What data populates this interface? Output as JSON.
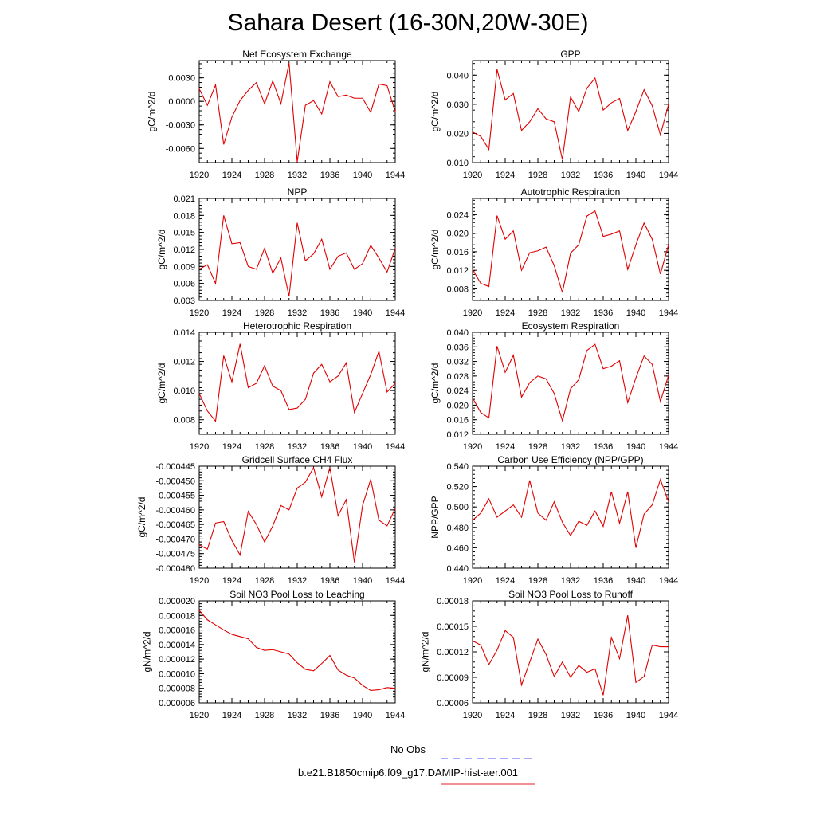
{
  "page": {
    "title": "Sahara Desert (16-30N,20W-30E)"
  },
  "legend": {
    "entries": [
      {
        "label": "No Obs",
        "color": "#5555ff",
        "style": "dashed"
      },
      {
        "label": "b.e21.B1850cmip6.f09_g17.DAMIP-hist-aer.001",
        "color": "#e02020",
        "style": "solid"
      }
    ]
  },
  "line_color": "#e00000",
  "chart_data": [
    {
      "type": "line",
      "title": "Net Ecosystem Exchange",
      "ylabel": "gC/m^2/d",
      "ylim": [
        -0.0078,
        0.0052
      ],
      "yticks": [
        "0.0030",
        "0.0000",
        "-0.0030",
        "-0.0060"
      ],
      "ytick_values": [
        0.003,
        0.0,
        -0.003,
        -0.006
      ],
      "xlim": [
        1920,
        1944
      ],
      "xticks": [
        "1920",
        "1924",
        "1928",
        "1932",
        "1936",
        "1940",
        "1944"
      ],
      "x": [
        1920,
        1921,
        1922,
        1923,
        1924,
        1925,
        1926,
        1927,
        1928,
        1929,
        1930,
        1931,
        1932,
        1933,
        1934,
        1935,
        1936,
        1937,
        1938,
        1939,
        1940,
        1941,
        1942,
        1943,
        1944
      ],
      "series": [
        {
          "values": [
            0.0016,
            -0.0005,
            0.0021,
            -0.0055,
            -0.002,
            0.0001,
            0.0014,
            0.0024,
            -0.0003,
            0.0026,
            -0.0003,
            0.0049,
            -0.0077,
            -0.0005,
            0.0001,
            -0.0016,
            0.0025,
            0.0006,
            0.0008,
            0.0004,
            0.0004,
            -0.0014,
            0.0022,
            0.002,
            -0.0013
          ]
        }
      ]
    },
    {
      "type": "line",
      "title": "GPP",
      "ylabel": "gC/m^2/d",
      "ylim": [
        0.01,
        0.045
      ],
      "yticks": [
        "0.040",
        "0.030",
        "0.020",
        "0.010"
      ],
      "ytick_values": [
        0.04,
        0.03,
        0.02,
        0.01
      ],
      "xlim": [
        1920,
        1944
      ],
      "xticks": [
        "1920",
        "1924",
        "1928",
        "1932",
        "1936",
        "1940",
        "1944"
      ],
      "x": [
        1920,
        1921,
        1922,
        1923,
        1924,
        1925,
        1926,
        1927,
        1928,
        1929,
        1930,
        1931,
        1932,
        1933,
        1934,
        1935,
        1936,
        1937,
        1938,
        1939,
        1940,
        1941,
        1942,
        1943,
        1944
      ],
      "series": [
        {
          "values": [
            0.0205,
            0.019,
            0.0145,
            0.042,
            0.0315,
            0.0337,
            0.021,
            0.024,
            0.0285,
            0.025,
            0.024,
            0.011,
            0.0325,
            0.0275,
            0.0355,
            0.039,
            0.028,
            0.0305,
            0.032,
            0.021,
            0.0275,
            0.035,
            0.0295,
            0.0195,
            0.03
          ]
        }
      ]
    },
    {
      "type": "line",
      "title": "NPP",
      "ylabel": "gC/m^2/d",
      "ylim": [
        0.003,
        0.021
      ],
      "yticks": [
        "0.021",
        "0.018",
        "0.015",
        "0.012",
        "0.009",
        "0.006",
        "0.003"
      ],
      "ytick_values": [
        0.021,
        0.018,
        0.015,
        0.012,
        0.009,
        0.006,
        0.003
      ],
      "xlim": [
        1920,
        1944
      ],
      "xticks": [
        "1920",
        "1924",
        "1928",
        "1932",
        "1936",
        "1940",
        "1944"
      ],
      "x": [
        1920,
        1921,
        1922,
        1923,
        1924,
        1925,
        1926,
        1927,
        1928,
        1929,
        1930,
        1931,
        1932,
        1933,
        1934,
        1935,
        1936,
        1937,
        1938,
        1939,
        1940,
        1941,
        1942,
        1943,
        1944
      ],
      "series": [
        {
          "values": [
            0.0085,
            0.0093,
            0.006,
            0.018,
            0.013,
            0.0132,
            0.009,
            0.0085,
            0.0122,
            0.0078,
            0.0105,
            0.0037,
            0.0167,
            0.01,
            0.0112,
            0.0138,
            0.0085,
            0.0108,
            0.0114,
            0.0085,
            0.0095,
            0.0127,
            0.0105,
            0.008,
            0.0122
          ]
        }
      ]
    },
    {
      "type": "line",
      "title": "Autotrophic Respiration",
      "ylabel": "gC/m^2/d",
      "ylim": [
        0.0055,
        0.0275
      ],
      "yticks": [
        "0.024",
        "0.020",
        "0.016",
        "0.012",
        "0.008"
      ],
      "ytick_values": [
        0.024,
        0.02,
        0.016,
        0.012,
        0.008
      ],
      "xlim": [
        1920,
        1944
      ],
      "xticks": [
        "1920",
        "1924",
        "1928",
        "1932",
        "1936",
        "1940",
        "1944"
      ],
      "x": [
        1920,
        1921,
        1922,
        1923,
        1924,
        1925,
        1926,
        1927,
        1928,
        1929,
        1930,
        1931,
        1932,
        1933,
        1934,
        1935,
        1936,
        1937,
        1938,
        1939,
        1940,
        1941,
        1942,
        1943,
        1944
      ],
      "series": [
        {
          "values": [
            0.0122,
            0.0092,
            0.0085,
            0.0238,
            0.0187,
            0.0205,
            0.012,
            0.0158,
            0.0162,
            0.017,
            0.013,
            0.0072,
            0.0157,
            0.0175,
            0.0237,
            0.0248,
            0.0193,
            0.0198,
            0.0205,
            0.0122,
            0.0175,
            0.0222,
            0.0187,
            0.0112,
            0.0175
          ]
        }
      ]
    },
    {
      "type": "line",
      "title": "Heterotrophic Respiration",
      "ylabel": "gC/m^2/d",
      "ylim": [
        0.007,
        0.014
      ],
      "yticks": [
        "0.014",
        "0.012",
        "0.010",
        "0.008"
      ],
      "ytick_values": [
        0.014,
        0.012,
        0.01,
        0.008
      ],
      "xlim": [
        1920,
        1944
      ],
      "xticks": [
        "1920",
        "1924",
        "1928",
        "1932",
        "1936",
        "1940",
        "1944"
      ],
      "x": [
        1920,
        1921,
        1922,
        1923,
        1924,
        1925,
        1926,
        1927,
        1928,
        1929,
        1930,
        1931,
        1932,
        1933,
        1934,
        1935,
        1936,
        1937,
        1938,
        1939,
        1940,
        1941,
        1942,
        1943,
        1944
      ],
      "series": [
        {
          "values": [
            0.0098,
            0.0086,
            0.0079,
            0.0124,
            0.0106,
            0.0132,
            0.0102,
            0.0105,
            0.0117,
            0.0103,
            0.01,
            0.0087,
            0.0088,
            0.0094,
            0.0112,
            0.0118,
            0.0106,
            0.011,
            0.0119,
            0.0085,
            0.0098,
            0.0111,
            0.0127,
            0.0099,
            0.0105
          ]
        }
      ]
    },
    {
      "type": "line",
      "title": "Ecosystem Respiration",
      "ylabel": "gC/m^2/d",
      "ylim": [
        0.012,
        0.04
      ],
      "yticks": [
        "0.040",
        "0.036",
        "0.032",
        "0.028",
        "0.024",
        "0.020",
        "0.016",
        "0.012"
      ],
      "ytick_values": [
        0.04,
        0.036,
        0.032,
        0.028,
        0.024,
        0.02,
        0.016,
        0.012
      ],
      "xlim": [
        1920,
        1944
      ],
      "xticks": [
        "1920",
        "1924",
        "1928",
        "1932",
        "1936",
        "1940",
        "1944"
      ],
      "x": [
        1920,
        1921,
        1922,
        1923,
        1924,
        1925,
        1926,
        1927,
        1928,
        1929,
        1930,
        1931,
        1932,
        1933,
        1934,
        1935,
        1936,
        1937,
        1938,
        1939,
        1940,
        1941,
        1942,
        1943,
        1944
      ],
      "series": [
        {
          "values": [
            0.022,
            0.018,
            0.0165,
            0.0362,
            0.029,
            0.0337,
            0.0222,
            0.0262,
            0.028,
            0.0272,
            0.0232,
            0.0157,
            0.0245,
            0.027,
            0.035,
            0.0367,
            0.03,
            0.0307,
            0.0322,
            0.0207,
            0.0275,
            0.0335,
            0.0312,
            0.021,
            0.0282
          ]
        }
      ]
    },
    {
      "type": "line",
      "title": "Gridcell Surface CH4 Flux",
      "ylabel": "gC/m^2/d",
      "ylim": [
        -0.00048,
        -0.000445
      ],
      "yticks": [
        "-0.000445",
        "-0.000450",
        "-0.000455",
        "-0.000460",
        "-0.000465",
        "-0.000470",
        "-0.000475",
        "-0.000480"
      ],
      "ytick_values": [
        -0.000445,
        -0.00045,
        -0.000455,
        -0.00046,
        -0.000465,
        -0.00047,
        -0.000475,
        -0.00048
      ],
      "xlim": [
        1920,
        1944
      ],
      "xticks": [
        "1920",
        "1924",
        "1928",
        "1932",
        "1936",
        "1940",
        "1944"
      ],
      "x": [
        1920,
        1921,
        1922,
        1923,
        1924,
        1925,
        1926,
        1927,
        1928,
        1929,
        1930,
        1931,
        1932,
        1933,
        1934,
        1935,
        1936,
        1937,
        1938,
        1939,
        1940,
        1941,
        1942,
        1943,
        1944
      ],
      "series": [
        {
          "values": [
            -0.000472,
            -0.0004735,
            -0.0004645,
            -0.000464,
            -0.0004705,
            -0.0004755,
            -0.0004605,
            -0.000465,
            -0.000471,
            -0.0004655,
            -0.0004585,
            -0.00046,
            -0.0004525,
            -0.0004505,
            -0.0004455,
            -0.0004555,
            -0.0004455,
            -0.000462,
            -0.0004565,
            -0.000478,
            -0.0004585,
            -0.0004495,
            -0.0004635,
            -0.0004655,
            -0.0004595
          ]
        }
      ]
    },
    {
      "type": "line",
      "title": "Carbon Use Efficiency (NPP/GPP)",
      "ylabel": "NPP/GPP",
      "ylim": [
        0.44,
        0.54
      ],
      "yticks": [
        "0.540",
        "0.520",
        "0.500",
        "0.480",
        "0.460",
        "0.440"
      ],
      "ytick_values": [
        0.54,
        0.52,
        0.5,
        0.48,
        0.46,
        0.44
      ],
      "xlim": [
        1920,
        1944
      ],
      "xticks": [
        "1920",
        "1924",
        "1928",
        "1932",
        "1936",
        "1940",
        "1944"
      ],
      "x": [
        1920,
        1921,
        1922,
        1923,
        1924,
        1925,
        1926,
        1927,
        1928,
        1929,
        1930,
        1931,
        1932,
        1933,
        1934,
        1935,
        1936,
        1937,
        1938,
        1939,
        1940,
        1941,
        1942,
        1943,
        1944
      ],
      "series": [
        {
          "values": [
            0.487,
            0.494,
            0.508,
            0.49,
            0.496,
            0.502,
            0.49,
            0.526,
            0.494,
            0.487,
            0.505,
            0.485,
            0.472,
            0.486,
            0.482,
            0.496,
            0.481,
            0.515,
            0.484,
            0.515,
            0.46,
            0.493,
            0.502,
            0.527,
            0.505
          ]
        }
      ]
    },
    {
      "type": "line",
      "title": "Soil NO3 Pool Loss to Leaching",
      "ylabel": "gN/m^2/d",
      "ylim": [
        6e-06,
        2e-05
      ],
      "yticks": [
        "0.000020",
        "0.000018",
        "0.000016",
        "0.000014",
        "0.000012",
        "0.000010",
        "0.000008",
        "0.000006"
      ],
      "ytick_values": [
        2e-05,
        1.8e-05,
        1.6e-05,
        1.4e-05,
        1.2e-05,
        1e-05,
        8e-06,
        6e-06
      ],
      "xlim": [
        1920,
        1944
      ],
      "xticks": [
        "1920",
        "1924",
        "1928",
        "1932",
        "1936",
        "1940",
        "1944"
      ],
      "x": [
        1920,
        1921,
        1922,
        1923,
        1924,
        1925,
        1926,
        1927,
        1928,
        1929,
        1930,
        1931,
        1932,
        1933,
        1934,
        1935,
        1936,
        1937,
        1938,
        1939,
        1940,
        1941,
        1942,
        1943,
        1944
      ],
      "series": [
        {
          "values": [
            1.87e-05,
            1.74e-05,
            1.67e-05,
            1.6e-05,
            1.54e-05,
            1.51e-05,
            1.48e-05,
            1.36e-05,
            1.32e-05,
            1.33e-05,
            1.3e-05,
            1.27e-05,
            1.15e-05,
            1.06e-05,
            1.04e-05,
            1.14e-05,
            1.25e-05,
            1.05e-05,
            9.8e-06,
            9.4e-06,
            8.4e-06,
            7.7e-06,
            7.8e-06,
            8.1e-06,
            8e-06
          ]
        }
      ]
    },
    {
      "type": "line",
      "title": "Soil NO3 Pool Loss to Runoff",
      "ylabel": "gN/m^2/d",
      "ylim": [
        6e-05,
        0.00018
      ],
      "yticks": [
        "0.00018",
        "0.00015",
        "0.00012",
        "0.00009",
        "0.00006"
      ],
      "ytick_values": [
        0.00018,
        0.00015,
        0.00012,
        9e-05,
        6e-05
      ],
      "xlim": [
        1920,
        1944
      ],
      "xticks": [
        "1920",
        "1924",
        "1928",
        "1932",
        "1936",
        "1940",
        "1944"
      ],
      "x": [
        1920,
        1921,
        1922,
        1923,
        1924,
        1925,
        1926,
        1927,
        1928,
        1929,
        1930,
        1931,
        1932,
        1933,
        1934,
        1935,
        1936,
        1937,
        1938,
        1939,
        1940,
        1941,
        1942,
        1943,
        1944
      ],
      "series": [
        {
          "values": [
            0.000133,
            0.000128,
            0.000105,
            0.000122,
            0.000145,
            0.000137,
            8.1e-05,
            0.000108,
            0.000135,
            0.000117,
            9.1e-05,
            0.000108,
            9e-05,
            0.000104,
            9.6e-05,
            0.0001,
            6.9e-05,
            0.000137,
            0.000112,
            0.000163,
            8.4e-05,
            9.1e-05,
            0.000128,
            0.000126,
            0.000126
          ]
        }
      ]
    }
  ]
}
